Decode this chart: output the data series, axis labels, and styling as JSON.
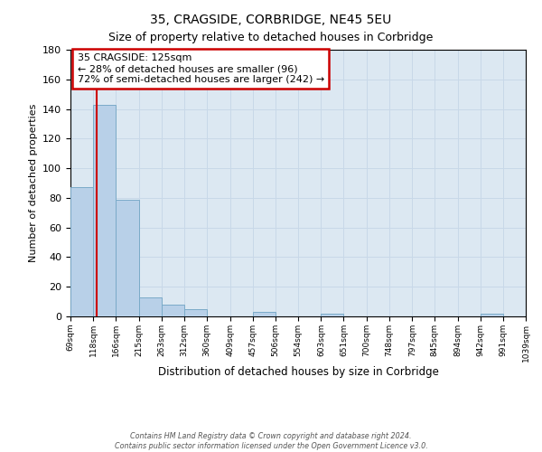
{
  "title": "35, CRAGSIDE, CORBRIDGE, NE45 5EU",
  "subtitle": "Size of property relative to detached houses in Corbridge",
  "xlabel": "Distribution of detached houses by size in Corbridge",
  "ylabel": "Number of detached properties",
  "bar_values": [
    87,
    143,
    79,
    13,
    8,
    5,
    0,
    0,
    3,
    0,
    0,
    2,
    0,
    0,
    0,
    0,
    0,
    0,
    2,
    0
  ],
  "bin_labels": [
    "69sqm",
    "118sqm",
    "166sqm",
    "215sqm",
    "263sqm",
    "312sqm",
    "360sqm",
    "409sqm",
    "457sqm",
    "506sqm",
    "554sqm",
    "603sqm",
    "651sqm",
    "700sqm",
    "748sqm",
    "797sqm",
    "845sqm",
    "894sqm",
    "942sqm",
    "991sqm",
    "1039sqm"
  ],
  "bin_edges": [
    69,
    118,
    166,
    215,
    263,
    312,
    360,
    409,
    457,
    506,
    554,
    603,
    651,
    700,
    748,
    797,
    845,
    894,
    942,
    991,
    1039
  ],
  "bar_color": "#b8d0e8",
  "bar_edgecolor": "#7aaac8",
  "ylim": [
    0,
    180
  ],
  "yticks": [
    0,
    20,
    40,
    60,
    80,
    100,
    120,
    140,
    160,
    180
  ],
  "vline_x": 125,
  "vline_color": "#cc0000",
  "annotation_title": "35 CRAGSIDE: 125sqm",
  "annotation_line1": "← 28% of detached houses are smaller (96)",
  "annotation_line2": "72% of semi-detached houses are larger (242) →",
  "annotation_box_color": "#cc0000",
  "footer_line1": "Contains HM Land Registry data © Crown copyright and database right 2024.",
  "footer_line2": "Contains public sector information licensed under the Open Government Licence v3.0.",
  "grid_color": "#c8d8e8",
  "background_color": "#dce8f2"
}
